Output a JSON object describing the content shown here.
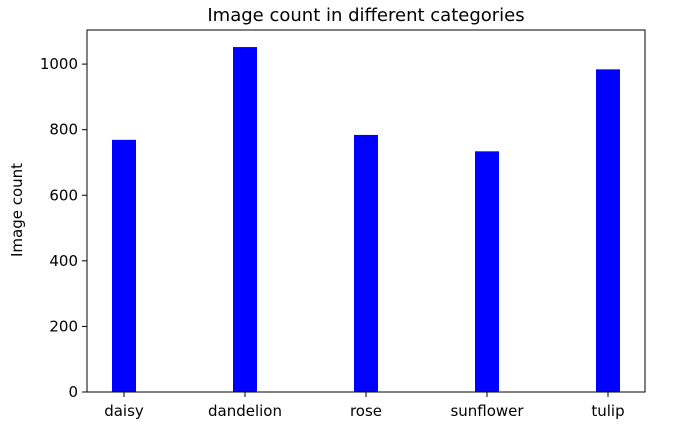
{
  "chart_data": {
    "type": "bar",
    "title": "Image count in different categories",
    "xlabel": "",
    "ylabel": "Image count",
    "categories": [
      "daisy",
      "dandelion",
      "rose",
      "sunflower",
      "tulip"
    ],
    "values": [
      769,
      1052,
      784,
      734,
      984
    ],
    "ylim": [
      0,
      1104
    ],
    "yticks": [
      0,
      200,
      400,
      600,
      800,
      1000
    ],
    "bar_color": "#0000ff",
    "grid": false,
    "legend": "none"
  }
}
